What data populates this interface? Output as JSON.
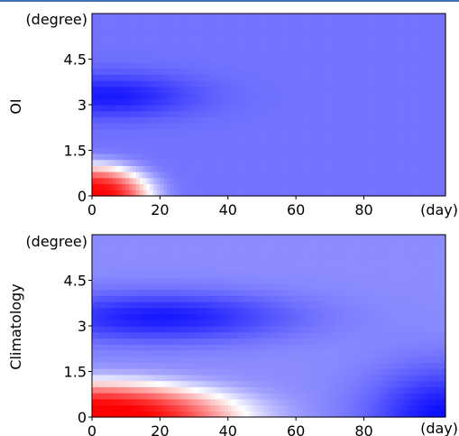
{
  "colors": {
    "background": "#ffffff",
    "top_rule": "#3d6fb3"
  },
  "chart_data": [
    {
      "type": "heatmap",
      "panel_label": "OI",
      "x_unit_label": "(day)",
      "y_unit_label": "(degree)",
      "x_ticks": [
        0,
        20,
        40,
        60,
        80
      ],
      "y_ticks": [
        0,
        1.5,
        3,
        4.5
      ],
      "y_tick_labels": [
        "0",
        "1.5",
        "3",
        "4.5"
      ],
      "xlim": [
        0,
        104
      ],
      "ylim": [
        0,
        6
      ],
      "colormap": "bwr",
      "color_values": {
        "approx_cold_spot": {
          "x": 5,
          "y": 3.3
        },
        "approx_warm_core": {
          "x": 0,
          "y": 0
        }
      },
      "field": {
        "background": -0.55,
        "cold_amp": -0.35,
        "cold_center": [
          5,
          3.3
        ],
        "cold_sigma": [
          25,
          0.7
        ],
        "warm_amp": 1.55,
        "warm_sigma": [
          17,
          1.0
        ]
      }
    },
    {
      "type": "heatmap",
      "panel_label": "Climatology",
      "x_unit_label": "(day)",
      "y_unit_label": "(degree)",
      "x_ticks": [
        0,
        20,
        40,
        60,
        80
      ],
      "y_ticks": [
        0,
        1.5,
        3,
        4.5
      ],
      "y_tick_labels": [
        "0",
        "1.5",
        "3",
        "4.5"
      ],
      "xlim": [
        0,
        104
      ],
      "ylim": [
        0,
        6
      ],
      "colormap": "bwr",
      "field": {
        "background": -0.45,
        "cold_amp": -0.45,
        "cold_center": [
          20,
          3.3
        ],
        "cold_sigma": [
          38,
          0.8
        ],
        "warm_amp": 1.5,
        "warm_sigma": [
          43,
          1.15
        ],
        "corner_amp": -0.5,
        "corner_center": [
          104,
          0
        ],
        "corner_sigma": [
          22,
          1.6
        ]
      }
    }
  ]
}
